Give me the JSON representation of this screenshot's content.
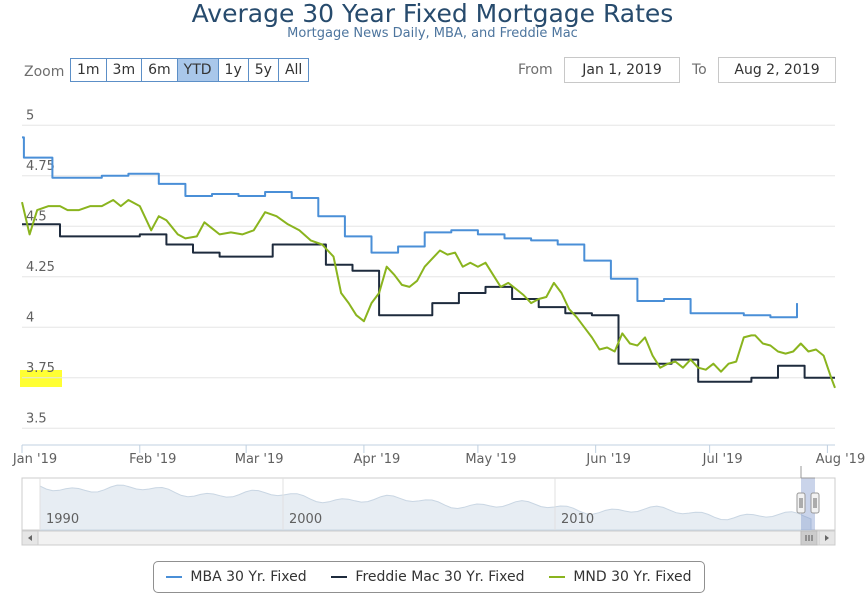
{
  "header": {
    "title": "Average 30 Year Fixed Mortgage Rates",
    "subtitle": "Mortgage News Daily, MBA, and Freddie Mac"
  },
  "range_selector": {
    "zoom_label": "Zoom",
    "buttons": [
      "1m",
      "3m",
      "6m",
      "YTD",
      "1y",
      "5y",
      "All"
    ],
    "active": "YTD",
    "from_label": "From",
    "from_value": "Jan 1, 2019",
    "to_label": "To",
    "to_value": "Aug 2, 2019"
  },
  "colors": {
    "mba": "#4a8fd7",
    "freddie": "#1e2b3d",
    "mnd": "#8ab41e",
    "grid": "#e6e6e6",
    "highlight": "#ffff33"
  },
  "navigator": {
    "year_labels": [
      "1990",
      "2000",
      "2010"
    ]
  },
  "chart_data": {
    "type": "line",
    "title": "Average 30 Year Fixed Mortgage Rates",
    "subtitle": "Mortgage News Daily, MBA, and Freddie Mac",
    "xlabel": "",
    "ylabel": "",
    "x_domain_days": [
      0,
      214
    ],
    "ylim": [
      3.5,
      5.05
    ],
    "y_ticks": [
      {
        "value": 5,
        "label": "5"
      },
      {
        "value": 4.75,
        "label": "4.75"
      },
      {
        "value": 4.5,
        "label": "4.5"
      },
      {
        "value": 4.25,
        "label": "4.25"
      },
      {
        "value": 4,
        "label": "4"
      },
      {
        "value": 3.75,
        "label": "3.75"
      },
      {
        "value": 3.5,
        "label": "3.5"
      }
    ],
    "x_ticks": [
      {
        "day": 0,
        "label": "Jan '19"
      },
      {
        "day": 31,
        "label": "Feb '19"
      },
      {
        "day": 59,
        "label": "Mar '19"
      },
      {
        "day": 90,
        "label": "Apr '19"
      },
      {
        "day": 120,
        "label": "May '19"
      },
      {
        "day": 151,
        "label": "Jun '19"
      },
      {
        "day": 181,
        "label": "Jul '19"
      },
      {
        "day": 212,
        "label": "Aug '19"
      }
    ],
    "grid": true,
    "legend_position": "bottom",
    "series": [
      {
        "name": "MBA 30 Yr. Fixed",
        "step": true,
        "points": [
          [
            0,
            4.94
          ],
          [
            0.5,
            4.84
          ],
          [
            8,
            4.74
          ],
          [
            21,
            4.75
          ],
          [
            28,
            4.76
          ],
          [
            36,
            4.71
          ],
          [
            43,
            4.65
          ],
          [
            50,
            4.66
          ],
          [
            57,
            4.65
          ],
          [
            64,
            4.67
          ],
          [
            71,
            4.64
          ],
          [
            78,
            4.55
          ],
          [
            85,
            4.45
          ],
          [
            92,
            4.37
          ],
          [
            99,
            4.4
          ],
          [
            106,
            4.47
          ],
          [
            113,
            4.48
          ],
          [
            120,
            4.46
          ],
          [
            127,
            4.44
          ],
          [
            134,
            4.43
          ],
          [
            141,
            4.41
          ],
          [
            148,
            4.33
          ],
          [
            155,
            4.24
          ],
          [
            162,
            4.13
          ],
          [
            169,
            4.14
          ],
          [
            176,
            4.07
          ],
          [
            183,
            4.07
          ],
          [
            190,
            4.06
          ],
          [
            197,
            4.05
          ],
          [
            204,
            4.12
          ]
        ]
      },
      {
        "name": "Freddie Mac 30 Yr. Fixed",
        "step": true,
        "points": [
          [
            0,
            4.51
          ],
          [
            3,
            4.51
          ],
          [
            10,
            4.45
          ],
          [
            17,
            4.45
          ],
          [
            24,
            4.45
          ],
          [
            31,
            4.46
          ],
          [
            38,
            4.41
          ],
          [
            45,
            4.37
          ],
          [
            52,
            4.35
          ],
          [
            59,
            4.35
          ],
          [
            66,
            4.41
          ],
          [
            73,
            4.41
          ],
          [
            80,
            4.31
          ],
          [
            87,
            4.28
          ],
          [
            94,
            4.06
          ],
          [
            101,
            4.06
          ],
          [
            108,
            4.12
          ],
          [
            115,
            4.17
          ],
          [
            122,
            4.2
          ],
          [
            129,
            4.14
          ],
          [
            136,
            4.1
          ],
          [
            143,
            4.07
          ],
          [
            150,
            4.06
          ],
          [
            157,
            3.82
          ],
          [
            164,
            3.82
          ],
          [
            171,
            3.84
          ],
          [
            178,
            3.73
          ],
          [
            185,
            3.73
          ],
          [
            192,
            3.75
          ],
          [
            199,
            3.81
          ],
          [
            206,
            3.75
          ],
          [
            214,
            3.75
          ]
        ]
      },
      {
        "name": "MND 30 Yr. Fixed",
        "step": false,
        "points": [
          [
            0,
            4.62
          ],
          [
            2,
            4.46
          ],
          [
            4,
            4.58
          ],
          [
            7,
            4.6
          ],
          [
            10,
            4.6
          ],
          [
            12,
            4.58
          ],
          [
            15,
            4.58
          ],
          [
            18,
            4.6
          ],
          [
            21,
            4.6
          ],
          [
            24,
            4.63
          ],
          [
            26,
            4.6
          ],
          [
            28,
            4.63
          ],
          [
            31,
            4.6
          ],
          [
            34,
            4.48
          ],
          [
            36,
            4.55
          ],
          [
            38,
            4.53
          ],
          [
            41,
            4.46
          ],
          [
            43,
            4.44
          ],
          [
            46,
            4.45
          ],
          [
            48,
            4.52
          ],
          [
            50,
            4.49
          ],
          [
            52,
            4.46
          ],
          [
            55,
            4.47
          ],
          [
            58,
            4.46
          ],
          [
            61,
            4.48
          ],
          [
            64,
            4.57
          ],
          [
            67,
            4.55
          ],
          [
            70,
            4.51
          ],
          [
            73,
            4.48
          ],
          [
            76,
            4.43
          ],
          [
            79,
            4.41
          ],
          [
            82,
            4.35
          ],
          [
            84,
            4.17
          ],
          [
            86,
            4.12
          ],
          [
            88,
            4.06
          ],
          [
            90,
            4.03
          ],
          [
            92,
            4.12
          ],
          [
            94,
            4.17
          ],
          [
            96,
            4.3
          ],
          [
            98,
            4.26
          ],
          [
            100,
            4.21
          ],
          [
            102,
            4.2
          ],
          [
            104,
            4.23
          ],
          [
            106,
            4.3
          ],
          [
            108,
            4.34
          ],
          [
            110,
            4.38
          ],
          [
            112,
            4.36
          ],
          [
            114,
            4.37
          ],
          [
            116,
            4.3
          ],
          [
            118,
            4.32
          ],
          [
            120,
            4.3
          ],
          [
            122,
            4.32
          ],
          [
            124,
            4.26
          ],
          [
            126,
            4.2
          ],
          [
            128,
            4.22
          ],
          [
            130,
            4.19
          ],
          [
            132,
            4.16
          ],
          [
            134,
            4.12
          ],
          [
            136,
            4.14
          ],
          [
            138,
            4.15
          ],
          [
            140,
            4.22
          ],
          [
            142,
            4.17
          ],
          [
            144,
            4.09
          ],
          [
            146,
            4.05
          ],
          [
            148,
            4.0
          ],
          [
            150,
            3.95
          ],
          [
            152,
            3.89
          ],
          [
            154,
            3.9
          ],
          [
            156,
            3.88
          ],
          [
            158,
            3.97
          ],
          [
            160,
            3.92
          ],
          [
            162,
            3.91
          ],
          [
            164,
            3.95
          ],
          [
            166,
            3.86
          ],
          [
            168,
            3.8
          ],
          [
            170,
            3.82
          ],
          [
            172,
            3.83
          ],
          [
            174,
            3.8
          ],
          [
            176,
            3.84
          ],
          [
            178,
            3.8
          ],
          [
            180,
            3.79
          ],
          [
            182,
            3.82
          ],
          [
            184,
            3.78
          ],
          [
            186,
            3.82
          ],
          [
            188,
            3.83
          ],
          [
            190,
            3.95
          ],
          [
            192,
            3.96
          ],
          [
            193,
            3.96
          ],
          [
            195,
            3.92
          ],
          [
            197,
            3.91
          ],
          [
            199,
            3.88
          ],
          [
            201,
            3.87
          ],
          [
            203,
            3.88
          ],
          [
            205,
            3.92
          ],
          [
            207,
            3.88
          ],
          [
            209,
            3.89
          ],
          [
            211,
            3.86
          ],
          [
            213,
            3.75
          ],
          [
            214,
            3.7
          ]
        ]
      }
    ]
  }
}
